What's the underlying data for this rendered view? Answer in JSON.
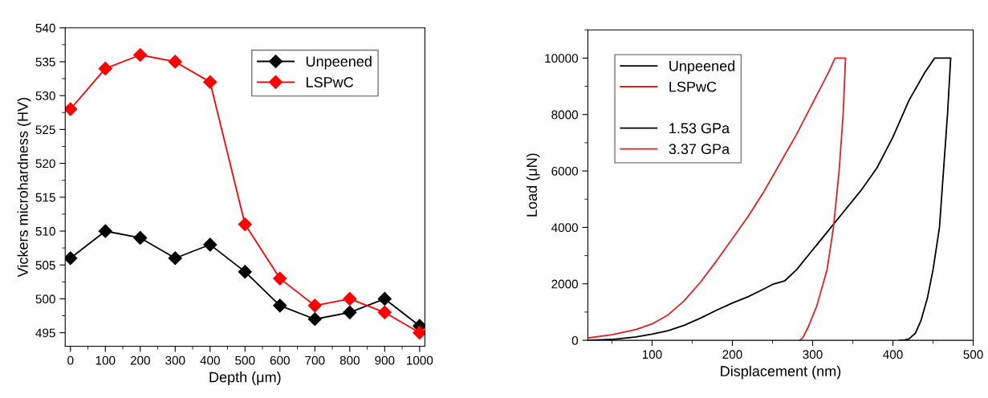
{
  "chart_data": [
    {
      "type": "line",
      "xlabel": "Depth (μm)",
      "ylabel": "Vickers microhardness (HV)",
      "x": [
        0,
        100,
        200,
        300,
        400,
        500,
        600,
        700,
        800,
        900,
        1000
      ],
      "xlim": [
        -15,
        1015
      ],
      "xticks": [
        0,
        100,
        200,
        300,
        400,
        500,
        600,
        700,
        800,
        900,
        1000
      ],
      "ylim": [
        493,
        540
      ],
      "yticks": [
        495,
        500,
        505,
        510,
        515,
        520,
        525,
        530,
        535,
        540
      ],
      "marker": "diamond",
      "line_style": "solid",
      "legend": "top right",
      "grid": false,
      "series": [
        {
          "name": "Unpeened",
          "color": "#000000",
          "values": [
            506,
            510,
            509,
            506,
            508,
            504,
            499,
            497,
            498,
            500,
            496
          ]
        },
        {
          "name": "LSPwC",
          "color": "#ff0000",
          "values": [
            528,
            534,
            536,
            535,
            532,
            511,
            503,
            499,
            500,
            498,
            495
          ]
        }
      ]
    },
    {
      "type": "line",
      "xlabel": "Displacement (nm)",
      "ylabel": "Load (μN)",
      "xlim": [
        20,
        500
      ],
      "xticks": [
        100,
        200,
        300,
        400,
        500
      ],
      "ylim": [
        0,
        11000
      ],
      "yticks": [
        0,
        2000,
        4000,
        6000,
        8000,
        10000
      ],
      "marker": "none",
      "line_style": "solid",
      "legend": "top left",
      "grid": false,
      "annotations": [
        "1.53 GPa",
        "3.37 GPa"
      ],
      "series": [
        {
          "name": "Unpeened",
          "color": "#000000",
          "x": [
            20,
            50,
            80,
            100,
            120,
            140,
            160,
            180,
            200,
            220,
            240,
            250,
            265,
            280,
            300,
            320,
            340,
            360,
            380,
            400,
            420,
            440,
            452,
            472,
            468,
            463,
            458,
            450,
            443,
            435,
            428,
            420,
            415,
            408
          ],
          "values": [
            0,
            30,
            120,
            220,
            340,
            530,
            780,
            1060,
            1320,
            1550,
            1830,
            1980,
            2100,
            2500,
            3200,
            3900,
            4600,
            5300,
            6100,
            7200,
            8500,
            9500,
            10000,
            10000,
            8000,
            6000,
            4000,
            2500,
            1500,
            700,
            250,
            50,
            10,
            0
          ]
        },
        {
          "name": "LSPwC",
          "color": "#e02020",
          "x": [
            20,
            50,
            80,
            100,
            120,
            140,
            160,
            180,
            200,
            220,
            240,
            260,
            280,
            300,
            320,
            328,
            341,
            338,
            333,
            326,
            318,
            305,
            295,
            288,
            284
          ],
          "values": [
            80,
            200,
            380,
            580,
            900,
            1400,
            2050,
            2800,
            3600,
            4400,
            5300,
            6300,
            7300,
            8400,
            9500,
            10000,
            10000,
            8000,
            6000,
            4000,
            2500,
            1200,
            500,
            100,
            0
          ]
        }
      ]
    }
  ]
}
